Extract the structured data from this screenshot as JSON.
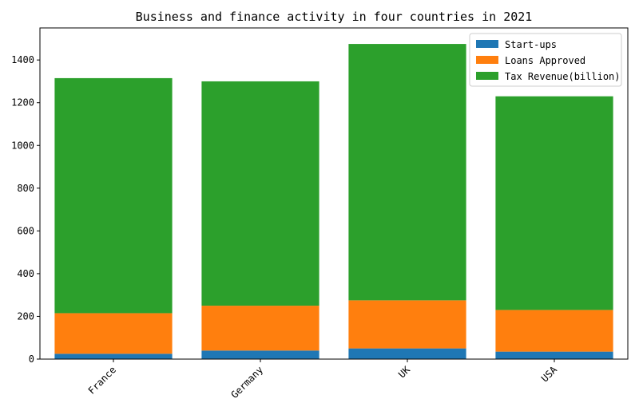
{
  "chart_data": {
    "type": "bar",
    "stacked": true,
    "title": "Business and finance activity in four countries in 2021",
    "xlabel": "",
    "ylabel": "",
    "categories": [
      "France",
      "Germany",
      "UK",
      "USA"
    ],
    "series": [
      {
        "name": "Start-ups",
        "color": "#1f77b4",
        "values": [
          25,
          40,
          50,
          35
        ]
      },
      {
        "name": "Loans Approved",
        "color": "#ff7f0e",
        "values": [
          190,
          210,
          225,
          195
        ]
      },
      {
        "name": "Tax Revenue(billion)",
        "color": "#2ca02c",
        "values": [
          1100,
          1050,
          1200,
          1000
        ]
      }
    ],
    "ylim": [
      0,
      1550
    ],
    "yticks": [
      0,
      200,
      400,
      600,
      800,
      1000,
      1200,
      1400
    ],
    "legend": "top-right",
    "grid": false,
    "xtick_rotation": 45
  }
}
